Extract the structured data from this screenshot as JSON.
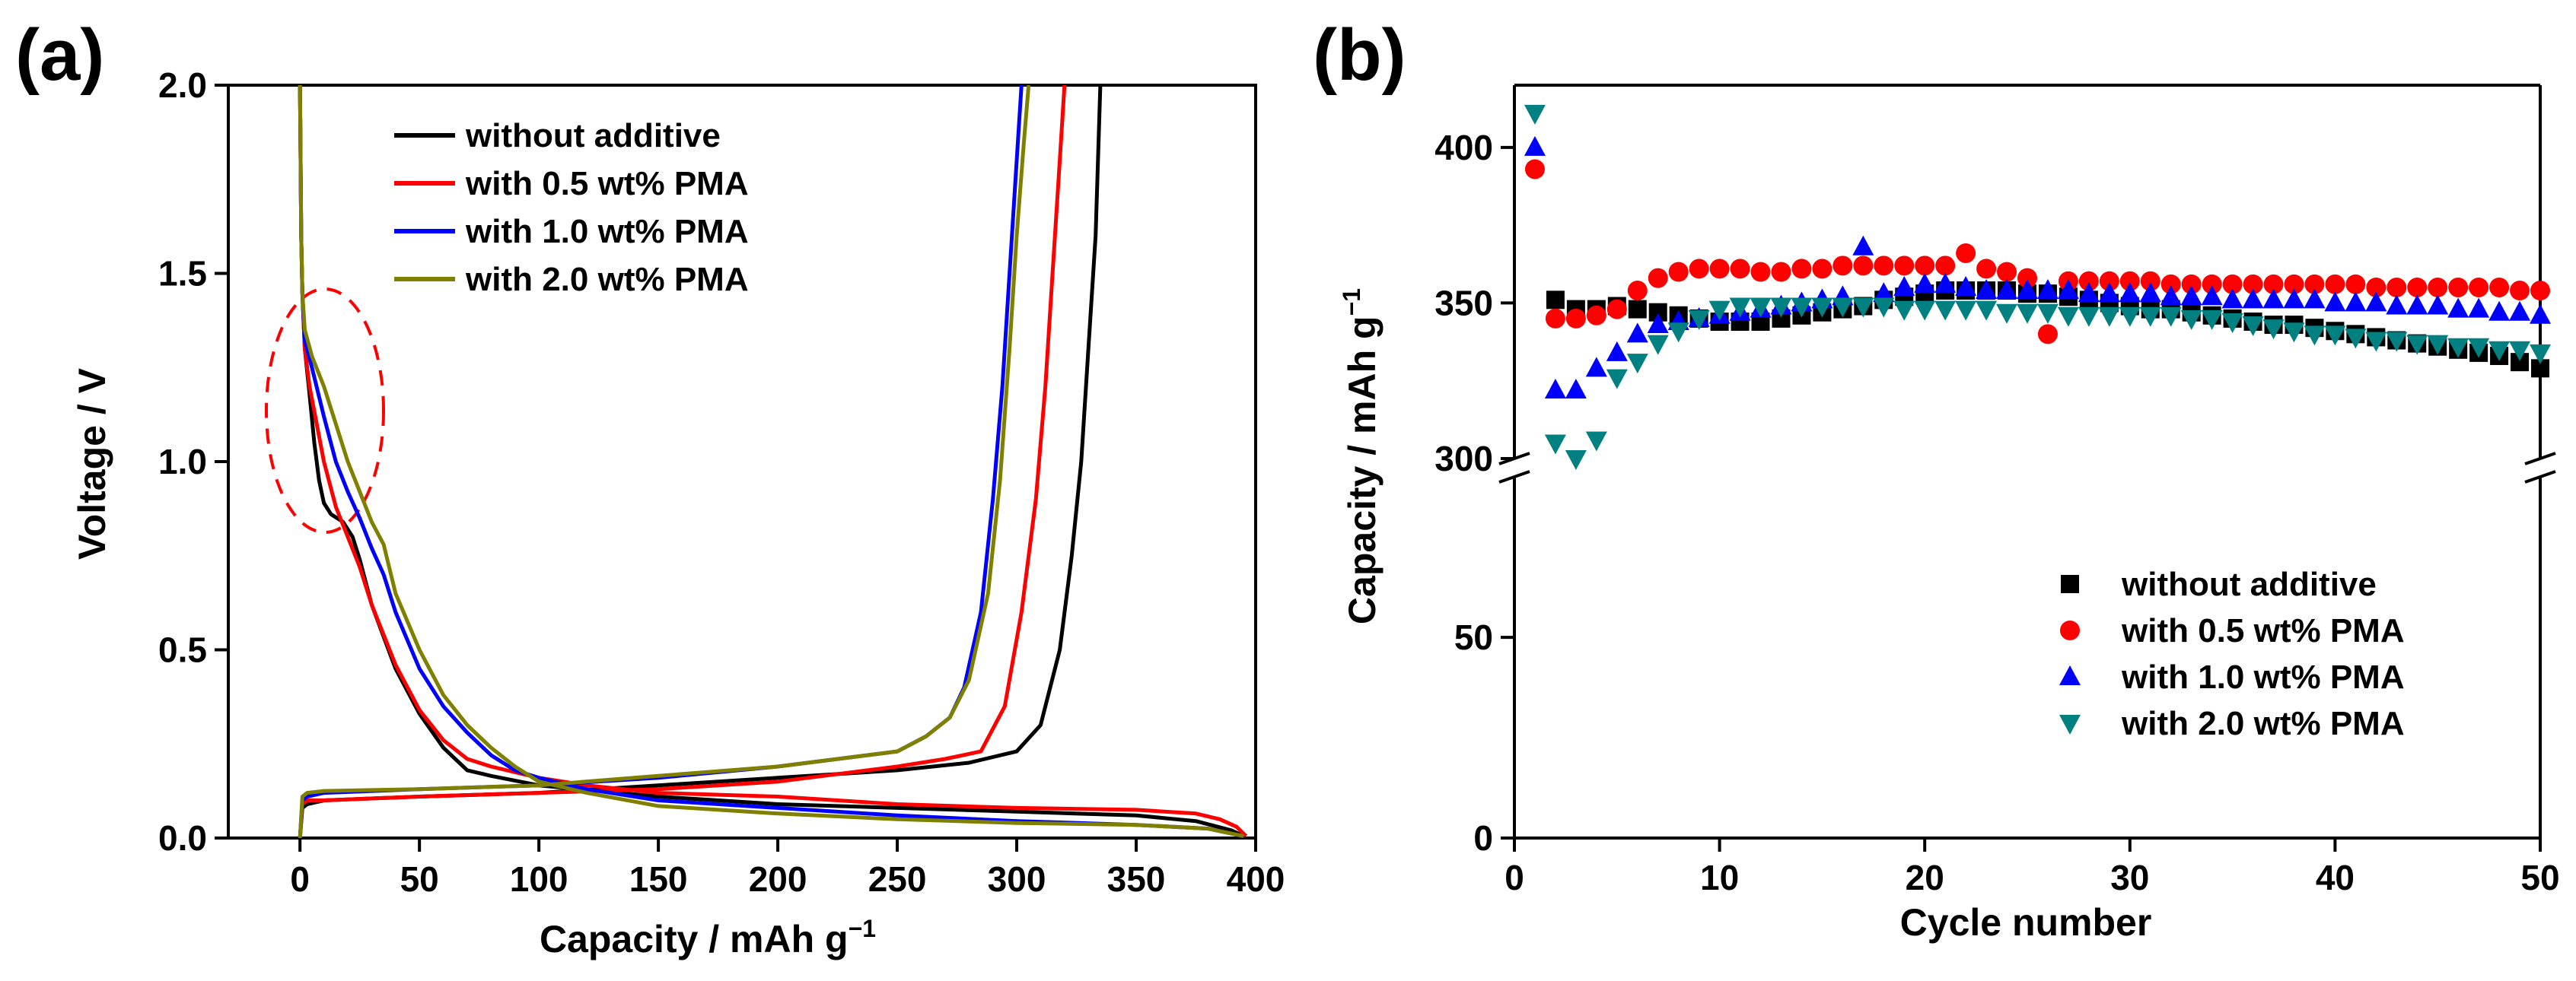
{
  "chart_data": [
    {
      "panel_label": "(a)",
      "type": "line",
      "xlabel": "Capacity / mAh g",
      "xlabel_sup": "−1",
      "ylabel": "Voltage / V",
      "xlim": [
        -30,
        400
      ],
      "ylim": [
        0,
        2.0
      ],
      "xticks": [
        0,
        50,
        100,
        150,
        200,
        250,
        300,
        350,
        400
      ],
      "yticks": [
        0.0,
        0.5,
        1.0,
        1.5,
        2.0
      ],
      "xtick_labels": [
        "0",
        "50",
        "100",
        "150",
        "200",
        "250",
        "300",
        "350",
        "400"
      ],
      "ytick_labels": [
        "0.0",
        "0.5",
        "1.0",
        "1.5",
        "2.0"
      ],
      "legend_position": "top-right",
      "annotation": "dashed red ellipse around the 0.75-1.35 V region near 0-40 mAh/g",
      "series": [
        {
          "name": "without additive",
          "color": "#000000",
          "discharge": [
            [
              0,
              2.0
            ],
            [
              0.5,
              1.6
            ],
            [
              1,
              1.45
            ],
            [
              2,
              1.3
            ],
            [
              4,
              1.18
            ],
            [
              6,
              1.05
            ],
            [
              8,
              0.95
            ],
            [
              10,
              0.89
            ],
            [
              13,
              0.86
            ],
            [
              18,
              0.84
            ],
            [
              22,
              0.8
            ],
            [
              25,
              0.74
            ],
            [
              30,
              0.62
            ],
            [
              40,
              0.45
            ],
            [
              50,
              0.33
            ],
            [
              60,
              0.24
            ],
            [
              70,
              0.18
            ],
            [
              80,
              0.165
            ],
            [
              100,
              0.14
            ],
            [
              150,
              0.11
            ],
            [
              200,
              0.09
            ],
            [
              250,
              0.08
            ],
            [
              300,
              0.07
            ],
            [
              350,
              0.06
            ],
            [
              375,
              0.045
            ],
            [
              390,
              0.02
            ],
            [
              395,
              0.005
            ]
          ],
          "charge": [
            [
              0,
              0
            ],
            [
              1,
              0.08
            ],
            [
              3,
              0.09
            ],
            [
              10,
              0.1
            ],
            [
              50,
              0.11
            ],
            [
              100,
              0.12
            ],
            [
              150,
              0.14
            ],
            [
              200,
              0.16
            ],
            [
              250,
              0.18
            ],
            [
              280,
              0.2
            ],
            [
              300,
              0.23
            ],
            [
              310,
              0.3
            ],
            [
              318,
              0.5
            ],
            [
              323,
              0.75
            ],
            [
              327,
              1.0
            ],
            [
              330,
              1.3
            ],
            [
              333,
              1.6
            ],
            [
              335,
              2.0
            ]
          ]
        },
        {
          "name": "with 0.5 wt% PMA",
          "color": "#ff0000",
          "discharge": [
            [
              0,
              2.0
            ],
            [
              0.5,
              1.6
            ],
            [
              1,
              1.45
            ],
            [
              2,
              1.3
            ],
            [
              4,
              1.2
            ],
            [
              7,
              1.1
            ],
            [
              10,
              1.0
            ],
            [
              15,
              0.88
            ],
            [
              20,
              0.8
            ],
            [
              25,
              0.72
            ],
            [
              30,
              0.62
            ],
            [
              40,
              0.46
            ],
            [
              50,
              0.34
            ],
            [
              60,
              0.26
            ],
            [
              70,
              0.21
            ],
            [
              80,
              0.19
            ],
            [
              90,
              0.175
            ],
            [
              100,
              0.16
            ],
            [
              120,
              0.14
            ],
            [
              150,
              0.12
            ],
            [
              200,
              0.11
            ],
            [
              250,
              0.09
            ],
            [
              300,
              0.08
            ],
            [
              350,
              0.075
            ],
            [
              375,
              0.065
            ],
            [
              385,
              0.05
            ],
            [
              392,
              0.03
            ],
            [
              396,
              0.005
            ]
          ],
          "charge": [
            [
              0,
              0
            ],
            [
              1,
              0.09
            ],
            [
              3,
              0.1
            ],
            [
              10,
              0.1
            ],
            [
              50,
              0.11
            ],
            [
              100,
              0.12
            ],
            [
              150,
              0.13
            ],
            [
              200,
              0.15
            ],
            [
              250,
              0.19
            ],
            [
              270,
              0.21
            ],
            [
              285,
              0.23
            ],
            [
              295,
              0.35
            ],
            [
              302,
              0.6
            ],
            [
              308,
              0.9
            ],
            [
              312,
              1.2
            ],
            [
              315,
              1.5
            ],
            [
              318,
              1.8
            ],
            [
              320,
              2.0
            ]
          ]
        },
        {
          "name": "with 1.0 wt% PMA",
          "color": "#0000ff",
          "discharge": [
            [
              0,
              2.0
            ],
            [
              0.5,
              1.6
            ],
            [
              1,
              1.45
            ],
            [
              2,
              1.32
            ],
            [
              5,
              1.25
            ],
            [
              10,
              1.12
            ],
            [
              15,
              1.0
            ],
            [
              20,
              0.92
            ],
            [
              25,
              0.85
            ],
            [
              30,
              0.77
            ],
            [
              35,
              0.7
            ],
            [
              40,
              0.6
            ],
            [
              50,
              0.45
            ],
            [
              60,
              0.35
            ],
            [
              70,
              0.28
            ],
            [
              80,
              0.22
            ],
            [
              90,
              0.18
            ],
            [
              100,
              0.16
            ],
            [
              120,
              0.13
            ],
            [
              150,
              0.1
            ],
            [
              200,
              0.08
            ],
            [
              250,
              0.06
            ],
            [
              300,
              0.045
            ],
            [
              350,
              0.035
            ],
            [
              380,
              0.025
            ],
            [
              395,
              0.005
            ]
          ],
          "charge": [
            [
              0,
              0
            ],
            [
              1,
              0.1
            ],
            [
              3,
              0.11
            ],
            [
              10,
              0.12
            ],
            [
              50,
              0.13
            ],
            [
              100,
              0.14
            ],
            [
              150,
              0.16
            ],
            [
              200,
              0.19
            ],
            [
              250,
              0.23
            ],
            [
              262,
              0.27
            ],
            [
              272,
              0.32
            ],
            [
              278,
              0.4
            ],
            [
              285,
              0.6
            ],
            [
              290,
              0.9
            ],
            [
              294,
              1.2
            ],
            [
              297,
              1.5
            ],
            [
              300,
              1.8
            ],
            [
              302,
              2.0
            ]
          ]
        },
        {
          "name": "with 2.0 wt% PMA",
          "color": "#808000",
          "discharge": [
            [
              0,
              2.0
            ],
            [
              0.5,
              1.6
            ],
            [
              1,
              1.45
            ],
            [
              2,
              1.35
            ],
            [
              5,
              1.28
            ],
            [
              10,
              1.2
            ],
            [
              15,
              1.1
            ],
            [
              20,
              1.0
            ],
            [
              25,
              0.92
            ],
            [
              30,
              0.84
            ],
            [
              35,
              0.78
            ],
            [
              40,
              0.65
            ],
            [
              50,
              0.5
            ],
            [
              60,
              0.38
            ],
            [
              70,
              0.3
            ],
            [
              80,
              0.24
            ],
            [
              90,
              0.19
            ],
            [
              100,
              0.15
            ],
            [
              120,
              0.12
            ],
            [
              150,
              0.085
            ],
            [
              200,
              0.065
            ],
            [
              250,
              0.05
            ],
            [
              300,
              0.04
            ],
            [
              350,
              0.035
            ],
            [
              380,
              0.025
            ],
            [
              395,
              0.005
            ]
          ],
          "charge": [
            [
              0,
              0
            ],
            [
              1,
              0.11
            ],
            [
              3,
              0.12
            ],
            [
              10,
              0.125
            ],
            [
              50,
              0.13
            ],
            [
              100,
              0.14
            ],
            [
              150,
              0.165
            ],
            [
              200,
              0.19
            ],
            [
              250,
              0.23
            ],
            [
              262,
              0.27
            ],
            [
              272,
              0.32
            ],
            [
              280,
              0.42
            ],
            [
              288,
              0.65
            ],
            [
              293,
              0.95
            ],
            [
              297,
              1.3
            ],
            [
              300,
              1.6
            ],
            [
              303,
              1.85
            ],
            [
              305,
              2.0
            ]
          ]
        }
      ]
    },
    {
      "panel_label": "(b)",
      "type": "scatter",
      "xlabel": "Cycle number",
      "ylabel": "Capacity / mAh g",
      "ylabel_sup": "−1",
      "xlim": [
        0,
        50
      ],
      "ylim_lower": [
        0,
        90
      ],
      "ylim_upper": [
        300,
        420
      ],
      "axis_break": "y-axis broken between 90 and 300",
      "xticks": [
        0,
        10,
        20,
        30,
        40,
        50
      ],
      "xtick_labels": [
        "0",
        "10",
        "20",
        "30",
        "40",
        "50"
      ],
      "yticks_lower": [
        0,
        50
      ],
      "ytick_labels_lower": [
        "0",
        "50"
      ],
      "yticks_upper": [
        300,
        350,
        400
      ],
      "ytick_labels_upper": [
        "300",
        "350",
        "400"
      ],
      "legend_position": "bottom-right",
      "x": [
        1,
        2,
        3,
        4,
        5,
        6,
        7,
        8,
        9,
        10,
        11,
        12,
        13,
        14,
        15,
        16,
        17,
        18,
        19,
        20,
        21,
        22,
        23,
        24,
        25,
        26,
        27,
        28,
        29,
        30,
        31,
        32,
        33,
        34,
        35,
        36,
        37,
        38,
        39,
        40,
        41,
        42,
        43,
        44,
        45,
        46,
        47,
        48,
        49,
        50
      ],
      "series": [
        {
          "name": "without additive",
          "color": "#000000",
          "marker": "square",
          "values": [
            null,
            351,
            348,
            348,
            349,
            348,
            347,
            346,
            345,
            344,
            344,
            344,
            345,
            346,
            347,
            348,
            349,
            351,
            352,
            353,
            354,
            354,
            354,
            354,
            353,
            353,
            352,
            351,
            350,
            349,
            348,
            348,
            347,
            346,
            345,
            344,
            343,
            343,
            342,
            341,
            340,
            339,
            338,
            337,
            336,
            335,
            334,
            333,
            331,
            329
          ]
        },
        {
          "name": "with 0.5 wt% PMA",
          "color": "#ff0000",
          "marker": "circle",
          "values": [
            393,
            345,
            345,
            346,
            348,
            354,
            358,
            360,
            361,
            361,
            361,
            360,
            360,
            361,
            361,
            362,
            362,
            362,
            362,
            362,
            362,
            366,
            361,
            360,
            358,
            340,
            357,
            357,
            357,
            357,
            357,
            356,
            356,
            356,
            356,
            356,
            356,
            356,
            356,
            356,
            356,
            355,
            355,
            355,
            355,
            355,
            355,
            355,
            354,
            354
          ]
        },
        {
          "name": "with 1.0 wt% PMA",
          "color": "#0000ff",
          "marker": "triangle-up",
          "values": [
            400,
            322,
            322,
            329,
            334,
            340,
            343,
            344,
            345,
            346,
            347,
            348,
            349,
            350,
            351,
            352,
            368,
            353,
            355,
            356,
            356,
            355,
            354,
            354,
            354,
            354,
            354,
            353,
            353,
            353,
            353,
            352,
            352,
            352,
            351,
            351,
            351,
            351,
            351,
            350,
            350,
            350,
            349,
            349,
            349,
            348,
            348,
            347,
            347,
            346
          ]
        },
        {
          "name": "with 2.0 wt% PMA",
          "color": "#008080",
          "marker": "triangle-down",
          "values": [
            411,
            305,
            300,
            306,
            326,
            331,
            337,
            341,
            345,
            348,
            349,
            349,
            349,
            349,
            349,
            349,
            349,
            349,
            348,
            348,
            348,
            348,
            348,
            347,
            347,
            347,
            346,
            346,
            346,
            346,
            346,
            346,
            345,
            345,
            344,
            343,
            342,
            341,
            340,
            340,
            339,
            338,
            338,
            337,
            337,
            336,
            336,
            335,
            335,
            334
          ]
        }
      ]
    }
  ]
}
